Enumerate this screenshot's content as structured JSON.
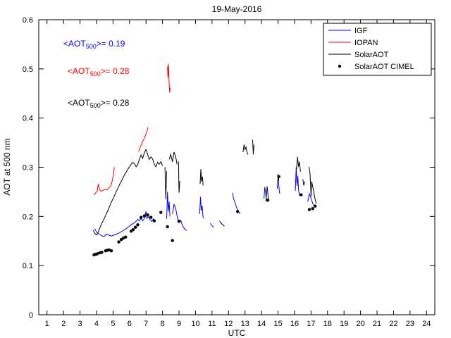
{
  "chart_data": {
    "type": "line",
    "title": "19-May-2016",
    "xlabel": "UTC",
    "ylabel": "AOT at 500 nm",
    "xlim": [
      0.5,
      24.5
    ],
    "ylim": [
      0,
      0.6
    ],
    "grid": false,
    "legend_position": "upper right",
    "xticks": [
      1,
      2,
      3,
      4,
      5,
      6,
      7,
      8,
      9,
      10,
      11,
      12,
      13,
      14,
      15,
      16,
      17,
      18,
      19,
      20,
      21,
      22,
      23,
      24
    ],
    "yticks": [
      0,
      0.1,
      0.2,
      0.3,
      0.4,
      0.5,
      0.6
    ],
    "annotations": [
      {
        "prefix": "<AOT",
        "sub": "500",
        "suffix": ">= 0.19",
        "color": "#0000ff",
        "series": "IGF"
      },
      {
        "prefix": "<AOT",
        "sub": "500",
        "suffix": ">= 0.28",
        "color": "#ff0000",
        "series": "IOPAN"
      },
      {
        "prefix": "<AOT",
        "sub": "500",
        "suffix": ">= 0.28",
        "color": "#000000",
        "series": "SolarAOT"
      }
    ],
    "series": [
      {
        "name": "IGF",
        "color": "#0000ff",
        "style": "line",
        "segments": [
          [
            [
              3.9,
              0.175
            ],
            [
              4.0,
              0.168
            ],
            [
              4.15,
              0.164
            ],
            [
              4.3,
              0.161
            ],
            [
              4.45,
              0.159
            ],
            [
              4.6,
              0.164
            ],
            [
              4.75,
              0.162
            ],
            [
              4.9,
              0.16
            ],
            [
              5.05,
              0.162
            ],
            [
              5.2,
              0.164
            ],
            [
              5.35,
              0.166
            ],
            [
              5.5,
              0.169
            ],
            [
              5.65,
              0.172
            ],
            [
              5.8,
              0.175
            ],
            [
              5.95,
              0.179
            ],
            [
              6.1,
              0.183
            ],
            [
              6.25,
              0.186
            ],
            [
              6.4,
              0.19
            ],
            [
              6.5,
              0.194
            ],
            [
              6.6,
              0.191
            ],
            [
              6.7,
              0.196
            ],
            [
              6.8,
              0.191
            ],
            [
              6.9,
              0.196
            ],
            [
              7.0,
              0.21
            ],
            [
              7.05,
              0.196
            ],
            [
              7.15,
              0.2
            ],
            [
              7.25,
              0.193
            ],
            [
              7.35,
              0.19
            ],
            [
              7.45,
              0.195
            ],
            [
              7.55,
              0.19
            ]
          ],
          [
            [
              8.25,
              0.195
            ],
            [
              8.3,
              0.25
            ],
            [
              8.35,
              0.21
            ],
            [
              8.4,
              0.23
            ],
            [
              8.45,
              0.2
            ]
          ],
          [
            [
              8.6,
              0.205
            ],
            [
              8.7,
              0.225
            ],
            [
              8.8,
              0.215
            ],
            [
              8.9,
              0.198
            ],
            [
              9.0,
              0.188
            ],
            [
              9.1,
              0.192
            ],
            [
              9.2,
              0.182
            ],
            [
              9.3,
              0.176
            ],
            [
              9.45,
              0.171
            ]
          ],
          [
            [
              10.25,
              0.205
            ],
            [
              10.3,
              0.24
            ],
            [
              10.35,
              0.212
            ],
            [
              10.4,
              0.222
            ],
            [
              10.45,
              0.2
            ],
            [
              10.5,
              0.196
            ]
          ],
          [
            [
              10.9,
              0.186
            ],
            [
              11.0,
              0.181
            ],
            [
              11.1,
              0.178
            ]
          ],
          [
            [
              12.25,
              0.248
            ],
            [
              12.3,
              0.237
            ],
            [
              12.4,
              0.227
            ],
            [
              12.5,
              0.217
            ],
            [
              12.6,
              0.21
            ],
            [
              12.7,
              0.205
            ]
          ],
          [
            [
              14.15,
              0.236
            ],
            [
              14.2,
              0.26
            ],
            [
              14.25,
              0.246
            ],
            [
              14.3,
              0.235
            ]
          ],
          [
            [
              14.95,
              0.256
            ],
            [
              15.0,
              0.28
            ],
            [
              15.05,
              0.262
            ],
            [
              15.1,
              0.246
            ]
          ],
          [
            [
              16.05,
              0.252
            ],
            [
              16.1,
              0.3
            ],
            [
              16.15,
              0.262
            ],
            [
              16.2,
              0.282
            ],
            [
              16.25,
              0.252
            ],
            [
              16.3,
              0.242
            ]
          ],
          [
            [
              16.8,
              0.23
            ],
            [
              16.9,
              0.246
            ],
            [
              17.0,
              0.237
            ],
            [
              17.1,
              0.227
            ],
            [
              17.2,
              0.221
            ]
          ]
        ]
      },
      {
        "name": "IOPAN",
        "color": "#ff0000",
        "style": "line",
        "segments": [
          [
            [
              3.85,
              0.243
            ],
            [
              3.95,
              0.248
            ],
            [
              4.05,
              0.252
            ],
            [
              4.1,
              0.266
            ],
            [
              4.18,
              0.255
            ],
            [
              4.28,
              0.251
            ],
            [
              4.4,
              0.253
            ],
            [
              4.52,
              0.255
            ],
            [
              4.64,
              0.254
            ],
            [
              4.76,
              0.258
            ],
            [
              4.86,
              0.262
            ],
            [
              4.95,
              0.272
            ],
            [
              5.02,
              0.284
            ],
            [
              5.08,
              0.3
            ]
          ],
          [
            [
              6.55,
              0.332
            ],
            [
              6.65,
              0.341
            ],
            [
              6.75,
              0.349
            ],
            [
              6.85,
              0.356
            ],
            [
              6.95,
              0.363
            ],
            [
              7.05,
              0.372
            ],
            [
              7.12,
              0.381
            ]
          ],
          [
            [
              8.3,
              0.505
            ],
            [
              8.33,
              0.482
            ],
            [
              8.36,
              0.51
            ],
            [
              8.4,
              0.472
            ],
            [
              8.43,
              0.452
            ],
            [
              8.46,
              0.462
            ]
          ]
        ]
      },
      {
        "name": "SolarAOT",
        "color": "#000000",
        "style": "line",
        "segments": [
          [
            [
              3.8,
              0.172
            ],
            [
              3.9,
              0.165
            ],
            [
              4.0,
              0.162
            ],
            [
              4.1,
              0.168
            ],
            [
              4.2,
              0.176
            ],
            [
              4.3,
              0.185
            ],
            [
              4.42,
              0.192
            ],
            [
              4.54,
              0.201
            ],
            [
              4.66,
              0.21
            ],
            [
              4.78,
              0.219
            ],
            [
              4.9,
              0.229
            ],
            [
              5.0,
              0.236
            ],
            [
              5.1,
              0.243
            ],
            [
              5.2,
              0.251
            ],
            [
              5.3,
              0.258
            ],
            [
              5.4,
              0.265
            ],
            [
              5.5,
              0.271
            ],
            [
              5.6,
              0.278
            ],
            [
              5.7,
              0.285
            ],
            [
              5.8,
              0.29
            ],
            [
              5.9,
              0.296
            ],
            [
              6.0,
              0.301
            ],
            [
              6.1,
              0.306
            ],
            [
              6.2,
              0.31
            ],
            [
              6.3,
              0.307
            ],
            [
              6.4,
              0.301
            ],
            [
              6.5,
              0.306
            ],
            [
              6.6,
              0.316
            ],
            [
              6.7,
              0.325
            ],
            [
              6.8,
              0.318
            ],
            [
              6.9,
              0.33
            ],
            [
              7.0,
              0.336
            ],
            [
              7.1,
              0.326
            ],
            [
              7.2,
              0.316
            ],
            [
              7.3,
              0.321
            ],
            [
              7.4,
              0.317
            ],
            [
              7.5,
              0.306
            ],
            [
              7.6,
              0.301
            ],
            [
              7.7,
              0.31
            ],
            [
              7.8,
              0.306
            ],
            [
              7.9,
              0.311
            ],
            [
              8.0,
              0.303
            ]
          ],
          [
            [
              8.15,
              0.3
            ],
            [
              8.2,
              0.235
            ],
            [
              8.25,
              0.292
            ]
          ],
          [
            [
              8.4,
              0.316
            ],
            [
              8.5,
              0.326
            ],
            [
              8.6,
              0.311
            ],
            [
              8.7,
              0.331
            ],
            [
              8.8,
              0.321
            ],
            [
              8.88,
              0.306
            ]
          ],
          [
            [
              8.97,
              0.312
            ],
            [
              9.0,
              0.248
            ],
            [
              9.05,
              0.272
            ]
          ],
          [
            [
              10.28,
              0.266
            ],
            [
              10.32,
              0.296
            ],
            [
              10.37,
              0.271
            ],
            [
              10.42,
              0.281
            ],
            [
              10.46,
              0.263
            ]
          ],
          [
            [
              11.45,
              0.191
            ],
            [
              11.55,
              0.186
            ],
            [
              11.65,
              0.183
            ],
            [
              11.75,
              0.18
            ]
          ],
          [
            [
              12.88,
              0.331
            ],
            [
              12.94,
              0.346
            ],
            [
              13.0,
              0.336
            ],
            [
              13.06,
              0.341
            ],
            [
              13.12,
              0.331
            ],
            [
              13.18,
              0.326
            ]
          ],
          [
            [
              13.46,
              0.356
            ],
            [
              13.5,
              0.326
            ],
            [
              13.54,
              0.346
            ]
          ],
          [
            [
              14.28,
              0.236
            ],
            [
              14.34,
              0.261
            ],
            [
              14.4,
              0.241
            ],
            [
              14.46,
              0.231
            ]
          ],
          [
            [
              14.98,
              0.286
            ],
            [
              15.02,
              0.271
            ],
            [
              15.06,
              0.281
            ]
          ],
          [
            [
              16.12,
              0.296
            ],
            [
              16.18,
              0.321
            ],
            [
              16.24,
              0.301
            ],
            [
              16.3,
              0.311
            ],
            [
              16.36,
              0.291
            ]
          ],
          [
            [
              16.5,
              0.276
            ],
            [
              16.56,
              0.263
            ],
            [
              16.62,
              0.271
            ]
          ],
          [
            [
              16.88,
              0.301
            ],
            [
              16.94,
              0.286
            ],
            [
              17.0,
              0.241
            ],
            [
              17.04,
              0.271
            ],
            [
              17.1,
              0.261
            ],
            [
              17.16,
              0.251
            ],
            [
              17.24,
              0.236
            ],
            [
              17.32,
              0.226
            ]
          ]
        ]
      },
      {
        "name": "SolarAOT CIMEL",
        "color": "#000000",
        "style": "scatter",
        "points": [
          [
            3.85,
            0.122
          ],
          [
            3.95,
            0.123
          ],
          [
            4.05,
            0.124
          ],
          [
            4.2,
            0.126
          ],
          [
            4.32,
            0.127
          ],
          [
            4.55,
            0.13
          ],
          [
            4.65,
            0.131
          ],
          [
            4.76,
            0.132
          ],
          [
            4.9,
            0.13
          ],
          [
            5.35,
            0.148
          ],
          [
            5.5,
            0.153
          ],
          [
            5.62,
            0.156
          ],
          [
            5.76,
            0.158
          ],
          [
            6.1,
            0.17
          ],
          [
            6.22,
            0.173
          ],
          [
            6.36,
            0.178
          ],
          [
            6.5,
            0.183
          ],
          [
            6.7,
            0.198
          ],
          [
            6.9,
            0.201
          ],
          [
            7.1,
            0.203
          ],
          [
            7.3,
            0.198
          ],
          [
            7.5,
            0.191
          ],
          [
            7.9,
            0.208
          ],
          [
            8.3,
            0.179
          ],
          [
            8.6,
            0.151
          ],
          [
            9.0,
            0.19
          ],
          [
            12.55,
            0.21
          ],
          [
            14.35,
            0.233
          ],
          [
            15.05,
            0.281
          ],
          [
            16.4,
            0.244
          ],
          [
            16.9,
            0.214
          ],
          [
            17.1,
            0.216
          ],
          [
            17.25,
            0.221
          ]
        ]
      }
    ]
  }
}
